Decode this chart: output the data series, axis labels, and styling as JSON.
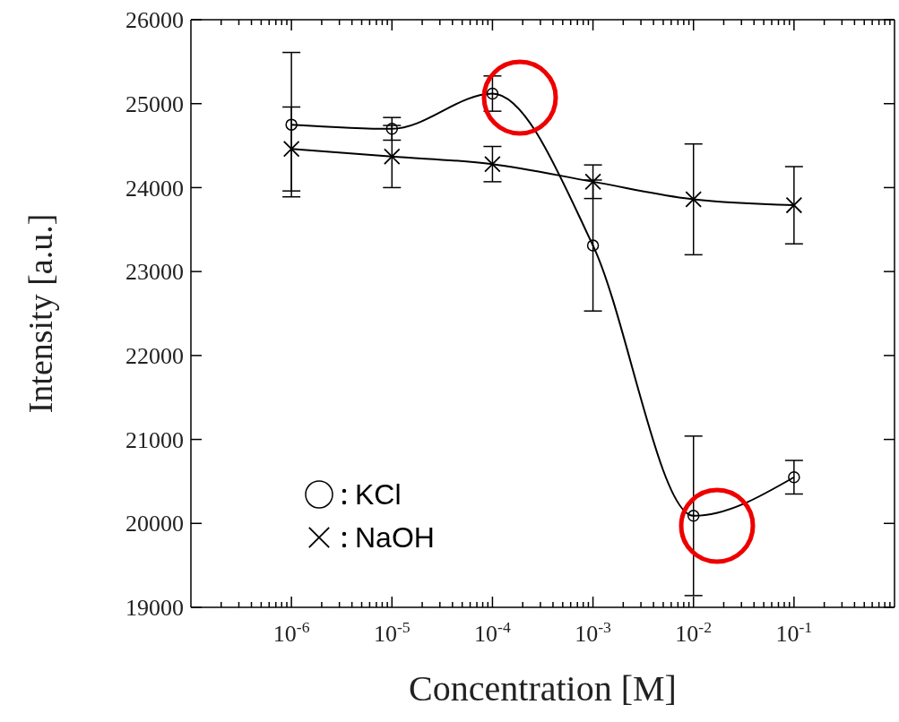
{
  "chart_data": {
    "type": "line",
    "xlabel": "Concentration [M]",
    "ylabel": "Intensity [a.u.]",
    "x": [
      1e-06,
      1e-05,
      0.0001,
      0.001,
      0.01,
      0.1
    ],
    "series": [
      {
        "name": "KCl",
        "color": "#000000",
        "marker": "circle",
        "values": [
          24750,
          24700,
          25120,
          23310,
          20090,
          20550
        ],
        "errors": [
          860,
          135,
          210,
          780,
          950,
          200
        ]
      },
      {
        "name": "NaOH",
        "color": "#000000",
        "marker": "cross",
        "values": [
          24460,
          24370,
          24280,
          24070,
          23860,
          23790
        ],
        "errors": [
          500,
          370,
          210,
          200,
          660,
          460
        ]
      }
    ],
    "xlim": [
      1e-07,
      1
    ],
    "ylim": [
      19000,
      26000
    ],
    "yticks": [
      19000,
      20000,
      21000,
      22000,
      23000,
      24000,
      25000,
      26000
    ],
    "xticks": [
      {
        "value": 2e-07,
        "label": null
      },
      {
        "value": 3e-07,
        "label": null
      },
      {
        "value": 4e-07,
        "label": null
      },
      {
        "value": 5e-07,
        "label": null
      },
      {
        "value": 6e-07,
        "label": null
      },
      {
        "value": 7e-07,
        "label": null
      },
      {
        "value": 8e-07,
        "label": null
      },
      {
        "value": 9e-07,
        "label": null
      },
      {
        "value": 1e-06,
        "label": "10$^{-6}$"
      },
      {
        "value": 2e-06,
        "label": null
      },
      {
        "value": 3e-06,
        "label": null
      },
      {
        "value": 4e-06,
        "label": null
      },
      {
        "value": 5e-06,
        "label": null
      },
      {
        "value": 6e-06,
        "label": null
      },
      {
        "value": 7e-06,
        "label": null
      },
      {
        "value": 8e-06,
        "label": null
      },
      {
        "value": 9e-06,
        "label": null
      },
      {
        "value": 1e-05,
        "label": "10$^{-5}$"
      },
      {
        "value": 2e-05,
        "label": null
      },
      {
        "value": 3e-05,
        "label": null
      },
      {
        "value": 4e-05,
        "label": null
      },
      {
        "value": 5e-05,
        "label": null
      },
      {
        "value": 6e-05,
        "label": null
      },
      {
        "value": 7e-05,
        "label": null
      },
      {
        "value": 8e-05,
        "label": null
      },
      {
        "value": 9e-05,
        "label": null
      },
      {
        "value": 0.0001,
        "label": "10$^{-4}$"
      },
      {
        "value": 0.0002,
        "label": null
      },
      {
        "value": 0.0003,
        "label": null
      },
      {
        "value": 0.0004,
        "label": null
      },
      {
        "value": 0.0005,
        "label": null
      },
      {
        "value": 0.0006,
        "label": null
      },
      {
        "value": 0.0007,
        "label": null
      },
      {
        "value": 0.0008,
        "label": null
      },
      {
        "value": 0.0009,
        "label": null
      },
      {
        "value": 0.001,
        "label": "10$^{-3}$"
      },
      {
        "value": 0.002,
        "label": null
      },
      {
        "value": 0.003,
        "label": null
      },
      {
        "value": 0.004,
        "label": null
      },
      {
        "value": 0.005,
        "label": null
      },
      {
        "value": 0.006,
        "label": null
      },
      {
        "value": 0.007,
        "label": null
      },
      {
        "value": 0.008,
        "label": null
      },
      {
        "value": 0.009,
        "label": null
      },
      {
        "value": 0.01,
        "label": "10$^{-2}$"
      },
      {
        "value": 0.02,
        "label": null
      },
      {
        "value": 0.03,
        "label": null
      },
      {
        "value": 0.04,
        "label": null
      },
      {
        "value": 0.05,
        "label": null
      },
      {
        "value": 0.06,
        "label": null
      },
      {
        "value": 0.07,
        "label": null
      },
      {
        "value": 0.08,
        "label": null
      },
      {
        "value": 0.09,
        "label": null
      },
      {
        "value": 0.1,
        "label": "10$^{-1}$"
      },
      {
        "value": 0.2,
        "label": null
      },
      {
        "value": 0.3,
        "label": null
      },
      {
        "value": 0.4,
        "label": null
      },
      {
        "value": 0.5,
        "label": null
      },
      {
        "value": 0.6,
        "label": null
      },
      {
        "value": 0.7,
        "label": null
      },
      {
        "value": 0.8,
        "label": null
      },
      {
        "value": 0.9,
        "label": null
      }
    ],
    "log": "x",
    "grid": false,
    "legend": "bottom left",
    "line_style": "solid"
  }
}
